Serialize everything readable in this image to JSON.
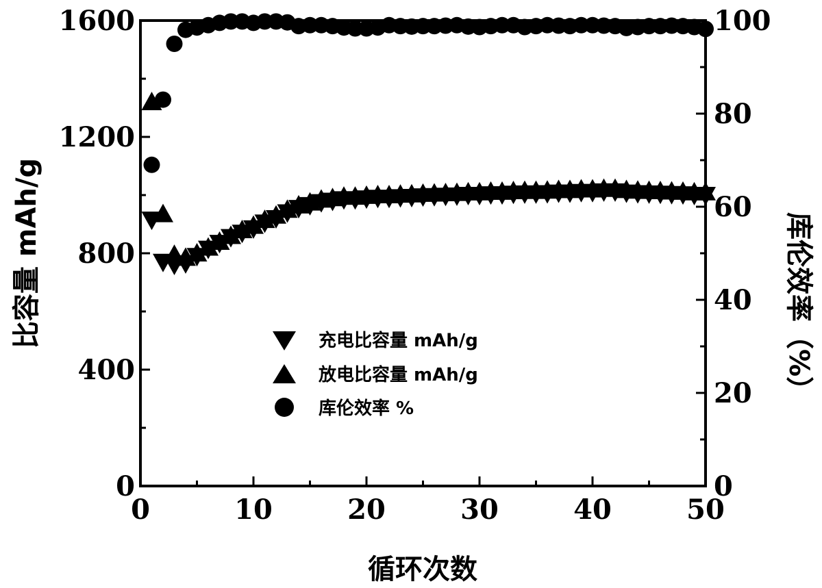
{
  "chart_data": {
    "type": "scatter",
    "xlabel": "循环次数",
    "ylabel_left": "比容量 mAh/g",
    "ylabel_right": "库伦效率（%）",
    "xlim": [
      0,
      50
    ],
    "ylim_left": [
      0,
      1600
    ],
    "ylim_right": [
      0,
      100
    ],
    "x_ticks": [
      0,
      10,
      20,
      30,
      40,
      50
    ],
    "y_left_ticks": [
      0,
      400,
      800,
      1200,
      1600
    ],
    "y_right_ticks": [
      0,
      20,
      40,
      60,
      80,
      100
    ],
    "grid": false,
    "legend_position": "center-left",
    "series": [
      {
        "name": "充电比容量 mAh/g",
        "marker": "triangle-down",
        "axis": "left",
        "x": [
          1,
          2,
          3,
          4,
          5,
          6,
          7,
          8,
          9,
          10,
          11,
          12,
          13,
          14,
          15,
          16,
          17,
          18,
          19,
          20,
          21,
          22,
          23,
          24,
          25,
          26,
          27,
          28,
          29,
          30,
          31,
          32,
          33,
          34,
          35,
          36,
          37,
          38,
          39,
          40,
          41,
          42,
          43,
          44,
          45,
          46,
          47,
          48,
          49,
          50
        ],
        "values": [
          915,
          770,
          760,
          765,
          790,
          815,
          835,
          855,
          870,
          885,
          905,
          920,
          940,
          955,
          965,
          975,
          980,
          985,
          985,
          988,
          990,
          990,
          992,
          993,
          995,
          996,
          997,
          998,
          1000,
          1000,
          1002,
          1002,
          1004,
          1005,
          1005,
          1006,
          1008,
          1008,
          1010,
          1010,
          1012,
          1012,
          1008,
          1006,
          1005,
          1004,
          1003,
          1002,
          1000,
          1000
        ]
      },
      {
        "name": "放电比容量 mAh/g",
        "marker": "triangle-up",
        "axis": "left",
        "x": [
          1,
          2,
          3,
          4,
          5,
          6,
          7,
          8,
          9,
          10,
          11,
          12,
          13,
          14,
          15,
          16,
          17,
          18,
          19,
          20,
          21,
          22,
          23,
          24,
          25,
          26,
          27,
          28,
          29,
          30,
          31,
          32,
          33,
          34,
          35,
          36,
          37,
          38,
          39,
          40,
          41,
          42,
          43,
          44,
          45,
          46,
          47,
          48,
          49,
          50
        ],
        "values": [
          1320,
          935,
          795,
          785,
          800,
          820,
          840,
          860,
          880,
          895,
          915,
          930,
          950,
          965,
          975,
          985,
          990,
          995,
          995,
          998,
          1000,
          1000,
          1002,
          1003,
          1005,
          1006,
          1007,
          1008,
          1010,
          1010,
          1012,
          1012,
          1014,
          1015,
          1015,
          1016,
          1018,
          1018,
          1020,
          1020,
          1022,
          1022,
          1018,
          1016,
          1015,
          1014,
          1013,
          1012,
          1010,
          1010
        ]
      },
      {
        "name": "库伦效率 %",
        "marker": "circle",
        "axis": "right",
        "x": [
          1,
          2,
          3,
          4,
          5,
          6,
          7,
          8,
          9,
          10,
          11,
          12,
          13,
          14,
          15,
          16,
          17,
          18,
          19,
          20,
          21,
          22,
          23,
          24,
          25,
          26,
          27,
          28,
          29,
          30,
          31,
          32,
          33,
          34,
          35,
          36,
          37,
          38,
          39,
          40,
          41,
          42,
          43,
          44,
          45,
          46,
          47,
          48,
          49,
          50
        ],
        "values": [
          69,
          83,
          95,
          98,
          98.5,
          99,
          99.5,
          99.8,
          99.8,
          99.5,
          99.8,
          99.8,
          99.6,
          98.8,
          99.0,
          99.0,
          98.8,
          98.5,
          98.3,
          98.3,
          98.5,
          99.0,
          98.8,
          98.7,
          98.8,
          98.8,
          98.9,
          99.0,
          98.7,
          98.6,
          98.8,
          99.0,
          99.0,
          98.6,
          98.8,
          99.0,
          98.9,
          98.8,
          99.0,
          99.0,
          98.9,
          98.8,
          98.4,
          98.6,
          98.8,
          98.8,
          98.9,
          98.8,
          98.6,
          98.2
        ]
      }
    ]
  }
}
